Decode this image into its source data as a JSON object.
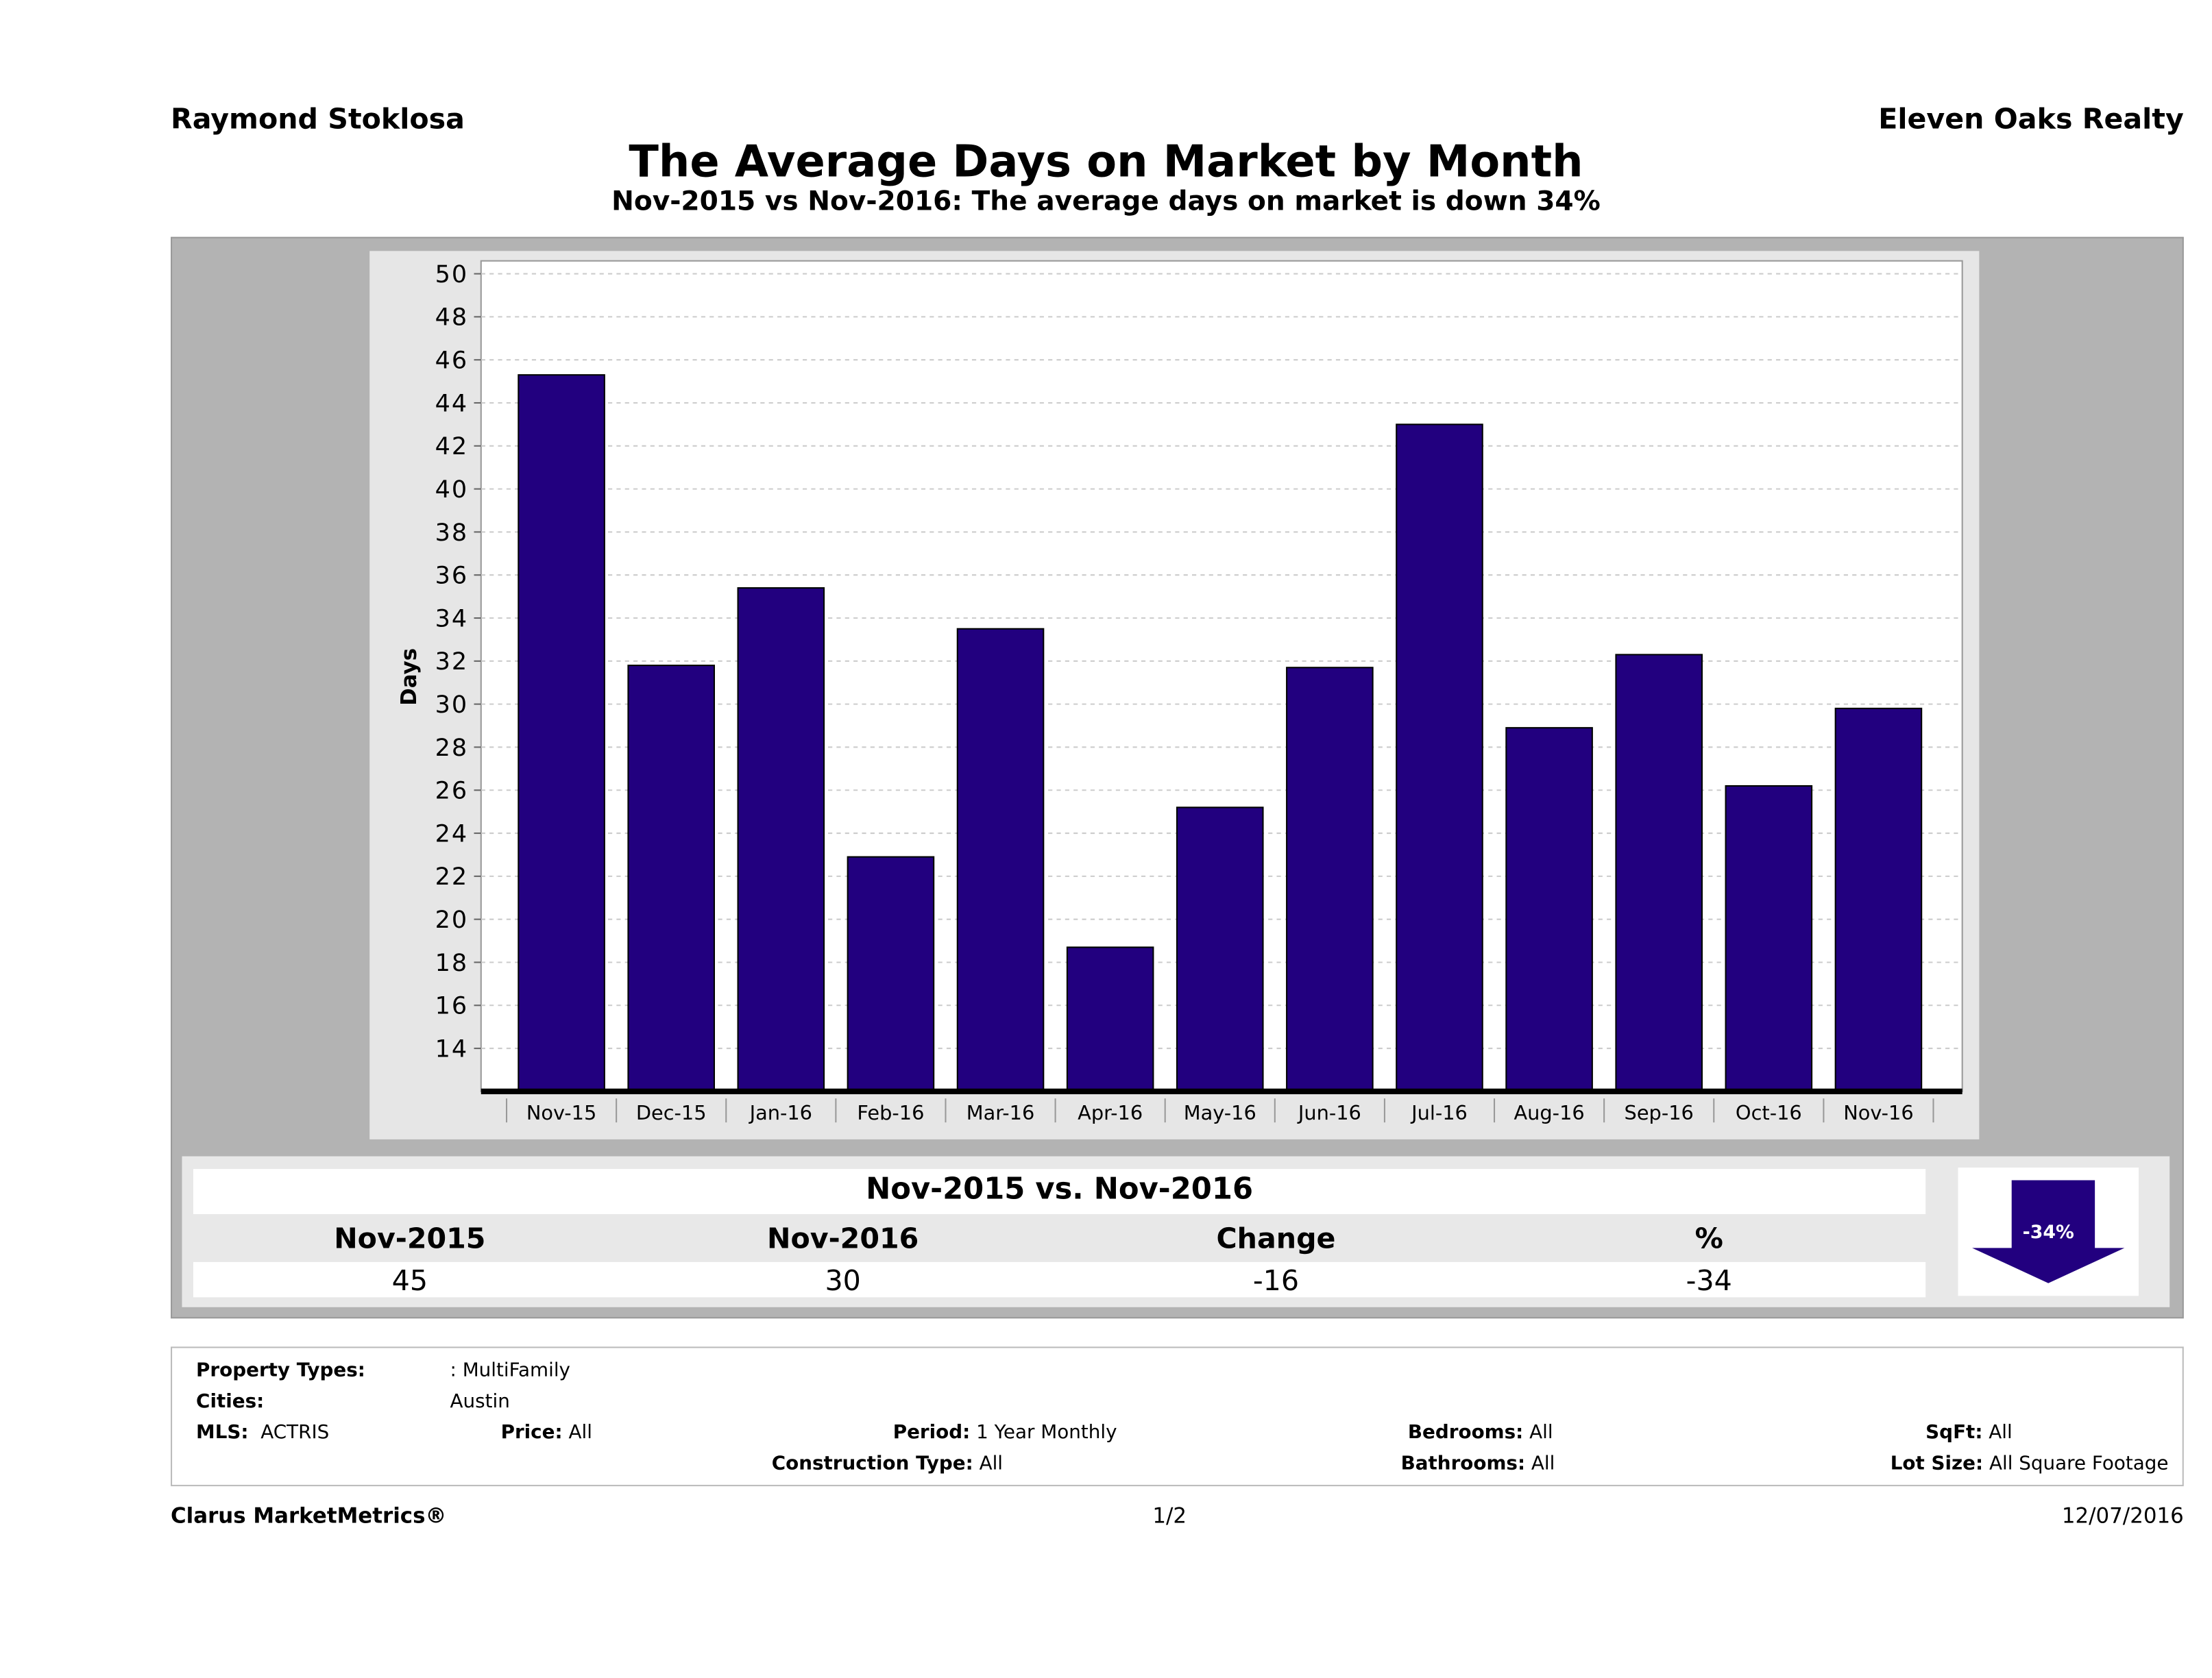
{
  "header": {
    "agent": "Raymond Stoklosa",
    "company": "Eleven Oaks Realty",
    "title": "The Average Days on Market by Month",
    "subtitle": "Nov-2015 vs Nov-2016: The average days on market is down 34%"
  },
  "chart_data": {
    "type": "bar",
    "title": "",
    "xlabel": "",
    "ylabel": "Days",
    "categories": [
      "Nov-15",
      "Dec-15",
      "Jan-16",
      "Feb-16",
      "Mar-16",
      "Apr-16",
      "May-16",
      "Jun-16",
      "Jul-16",
      "Aug-16",
      "Sep-16",
      "Oct-16",
      "Nov-16"
    ],
    "values": [
      45.3,
      31.8,
      35.4,
      22.9,
      33.5,
      18.7,
      25.2,
      31.7,
      43.0,
      28.9,
      32.3,
      26.2,
      29.8
    ],
    "yticks": [
      14,
      16,
      18,
      20,
      22,
      24,
      26,
      28,
      30,
      32,
      34,
      36,
      38,
      40,
      42,
      44,
      46,
      48,
      50
    ],
    "ylim": [
      12,
      50.6
    ],
    "grid": true,
    "bar_color": "#22007f"
  },
  "comparison": {
    "heading": "Nov-2015 vs. Nov-2016",
    "columns": [
      "Nov-2015",
      "Nov-2016",
      "Change",
      "%"
    ],
    "values": [
      "45",
      "30",
      "-16",
      "-34"
    ],
    "badge": "-34%",
    "badge_color": "#22007f"
  },
  "filters": {
    "property_types_label": "Property Types:",
    "property_types": ": MultiFamily",
    "cities_label": "Cities:",
    "cities": "Austin",
    "mls_label": "MLS:",
    "mls": "ACTRIS",
    "price_label": "Price:",
    "price": "All",
    "period_label": "Period:",
    "period": "1 Year Monthly",
    "construction_label": "Construction Type:",
    "construction": "All",
    "bedrooms_label": "Bedrooms:",
    "bedrooms": "All",
    "bathrooms_label": "Bathrooms:",
    "bathrooms": "All",
    "sqft_label": "SqFt:",
    "sqft": "All",
    "lot_label": "Lot Size:",
    "lot": "All Square Footage"
  },
  "footer": {
    "brand": "Clarus MarketMetrics®",
    "page": "1/2",
    "date": "12/07/2016"
  }
}
